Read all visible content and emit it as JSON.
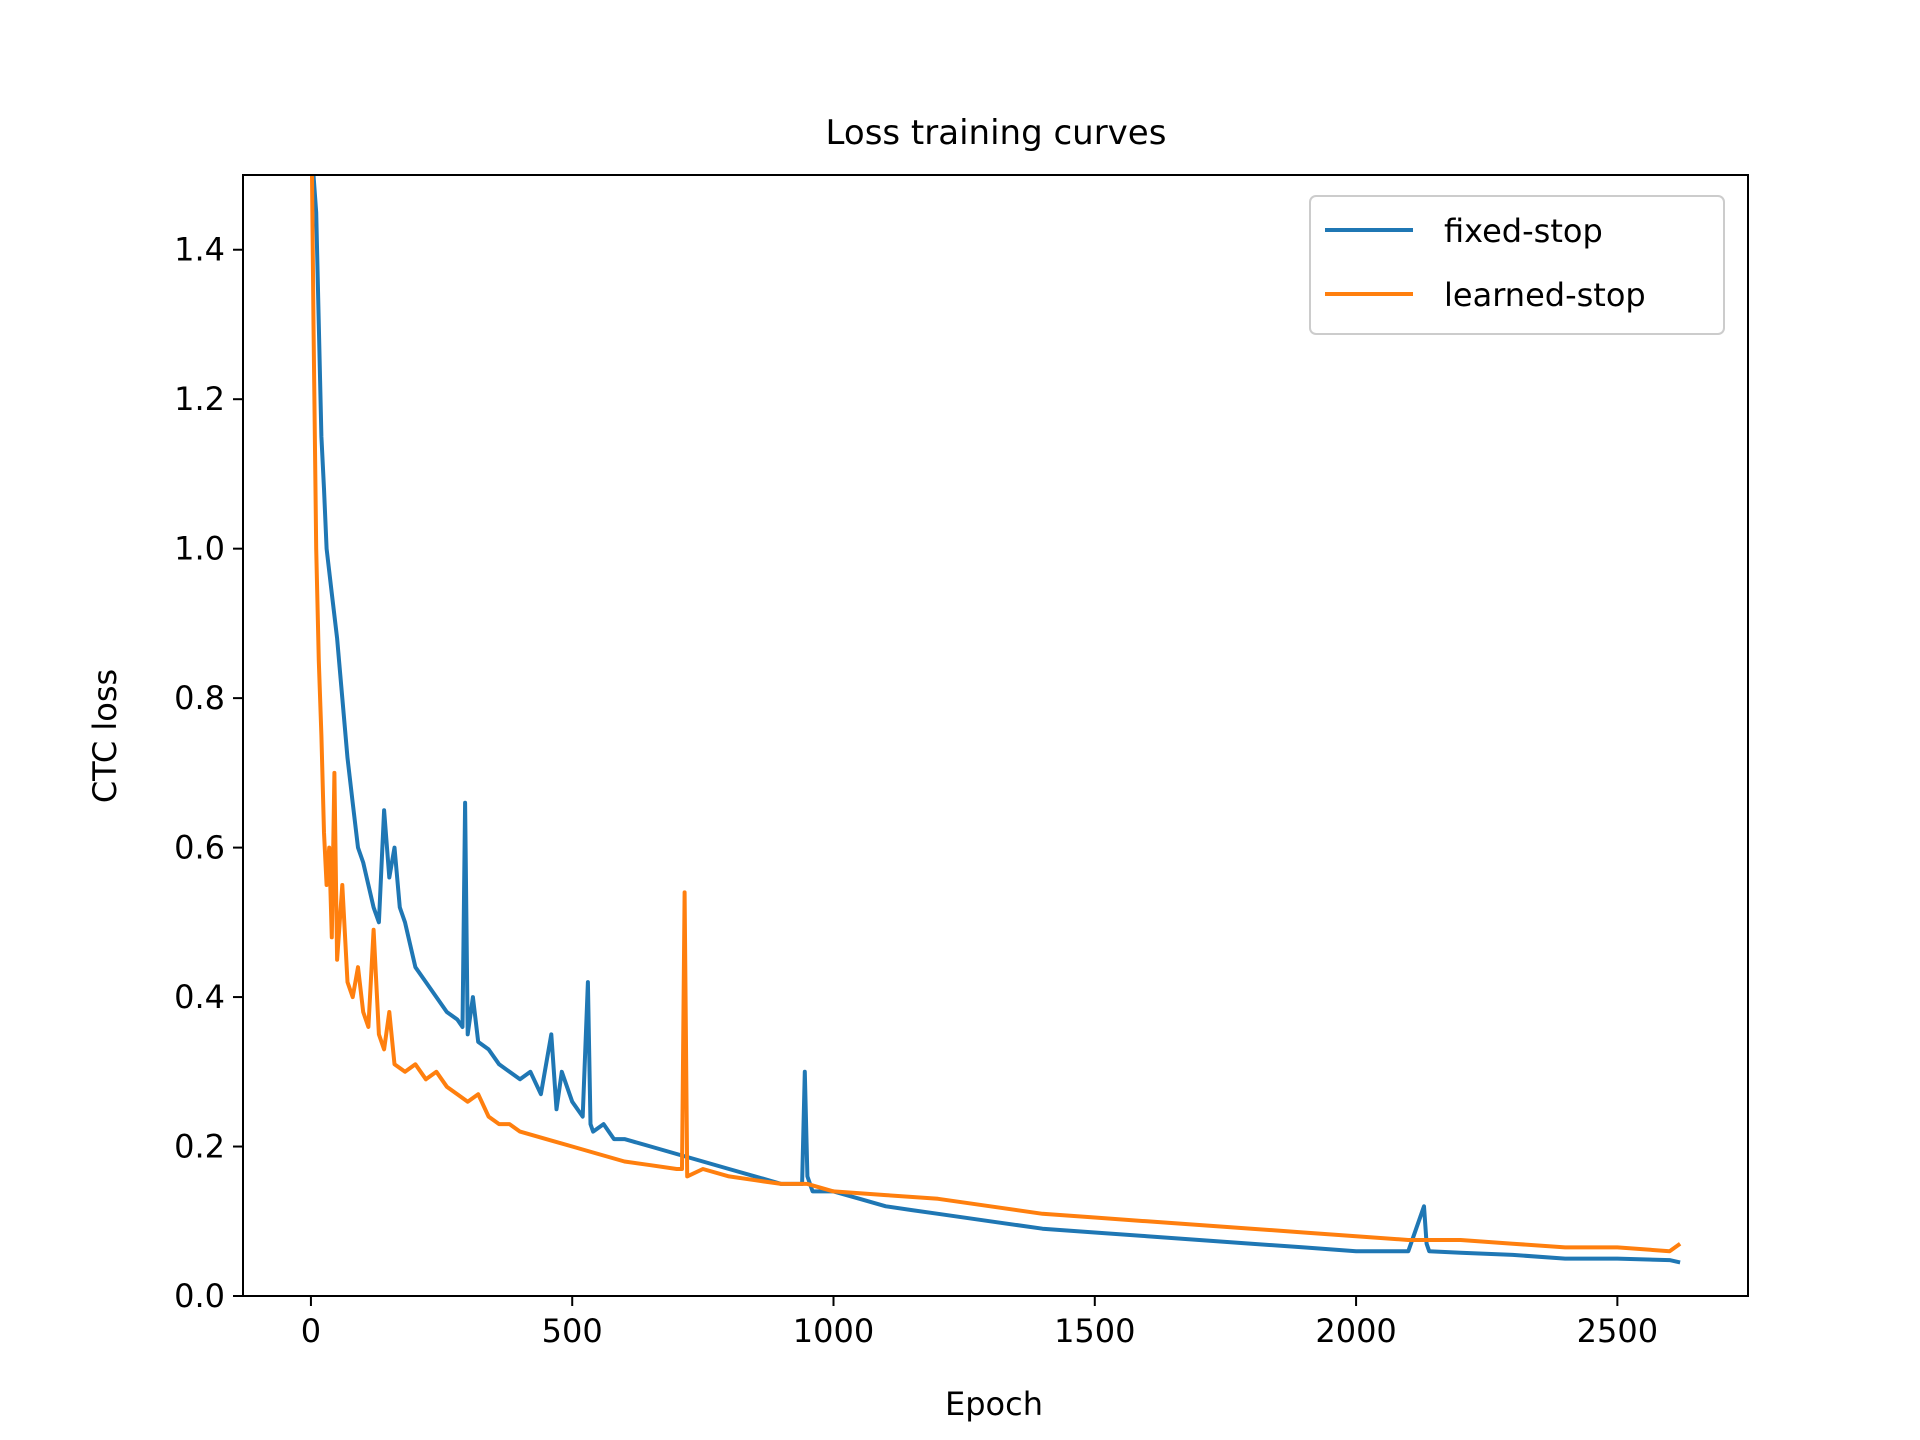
{
  "chart_data": {
    "type": "line",
    "title": "Loss training curves",
    "xlabel": "Epoch",
    "ylabel": "CTC loss",
    "xlim": [
      -130,
      2750
    ],
    "ylim": [
      0,
      1.5
    ],
    "xticks": [
      0,
      500,
      1000,
      1500,
      2000,
      2500
    ],
    "yticks": [
      0.0,
      0.2,
      0.4,
      0.6,
      0.8,
      1.0,
      1.2,
      1.4
    ],
    "grid": false,
    "legend_position": "top-right",
    "series": [
      {
        "name": "fixed-stop",
        "color": "#1f77b4",
        "x": [
          5,
          10,
          15,
          20,
          25,
          30,
          40,
          50,
          60,
          70,
          80,
          90,
          100,
          110,
          120,
          130,
          140,
          150,
          160,
          170,
          180,
          190,
          200,
          220,
          240,
          260,
          280,
          290,
          295,
          300,
          310,
          320,
          340,
          360,
          380,
          400,
          420,
          440,
          460,
          470,
          480,
          500,
          520,
          530,
          535,
          540,
          560,
          580,
          600,
          650,
          700,
          750,
          800,
          850,
          900,
          940,
          945,
          950,
          960,
          1000,
          1050,
          1100,
          1150,
          1200,
          1300,
          1400,
          1500,
          1600,
          1700,
          1800,
          1900,
          2000,
          2100,
          2130,
          2135,
          2140,
          2200,
          2300,
          2400,
          2500,
          2600,
          2620
        ],
        "values": [
          1.5,
          1.45,
          1.3,
          1.15,
          1.08,
          1.0,
          0.94,
          0.88,
          0.8,
          0.72,
          0.66,
          0.6,
          0.58,
          0.55,
          0.52,
          0.5,
          0.65,
          0.56,
          0.6,
          0.52,
          0.5,
          0.47,
          0.44,
          0.42,
          0.4,
          0.38,
          0.37,
          0.36,
          0.66,
          0.35,
          0.4,
          0.34,
          0.33,
          0.31,
          0.3,
          0.29,
          0.3,
          0.27,
          0.35,
          0.25,
          0.3,
          0.26,
          0.24,
          0.42,
          0.23,
          0.22,
          0.23,
          0.21,
          0.21,
          0.2,
          0.19,
          0.18,
          0.17,
          0.16,
          0.15,
          0.15,
          0.3,
          0.16,
          0.14,
          0.14,
          0.13,
          0.12,
          0.115,
          0.11,
          0.1,
          0.09,
          0.085,
          0.08,
          0.075,
          0.07,
          0.065,
          0.06,
          0.06,
          0.12,
          0.07,
          0.06,
          0.058,
          0.055,
          0.05,
          0.05,
          0.048,
          0.045
        ]
      },
      {
        "name": "learned-stop",
        "color": "#ff7f0e",
        "x": [
          2,
          5,
          10,
          15,
          20,
          25,
          30,
          35,
          40,
          45,
          50,
          55,
          60,
          70,
          80,
          90,
          100,
          110,
          120,
          130,
          140,
          150,
          160,
          180,
          200,
          220,
          240,
          260,
          280,
          300,
          320,
          340,
          360,
          380,
          400,
          450,
          500,
          550,
          600,
          650,
          700,
          710,
          715,
          720,
          750,
          800,
          850,
          900,
          950,
          1000,
          1100,
          1200,
          1300,
          1400,
          1500,
          1600,
          1700,
          1800,
          1900,
          2000,
          2100,
          2200,
          2300,
          2400,
          2500,
          2600,
          2620
        ],
        "values": [
          1.5,
          1.3,
          1.0,
          0.85,
          0.75,
          0.62,
          0.55,
          0.6,
          0.48,
          0.7,
          0.45,
          0.5,
          0.55,
          0.42,
          0.4,
          0.44,
          0.38,
          0.36,
          0.49,
          0.35,
          0.33,
          0.38,
          0.31,
          0.3,
          0.31,
          0.29,
          0.3,
          0.28,
          0.27,
          0.26,
          0.27,
          0.24,
          0.23,
          0.23,
          0.22,
          0.21,
          0.2,
          0.19,
          0.18,
          0.175,
          0.17,
          0.17,
          0.54,
          0.16,
          0.17,
          0.16,
          0.155,
          0.15,
          0.15,
          0.14,
          0.135,
          0.13,
          0.12,
          0.11,
          0.105,
          0.1,
          0.095,
          0.09,
          0.085,
          0.08,
          0.075,
          0.075,
          0.07,
          0.065,
          0.065,
          0.06,
          0.07
        ]
      }
    ]
  }
}
